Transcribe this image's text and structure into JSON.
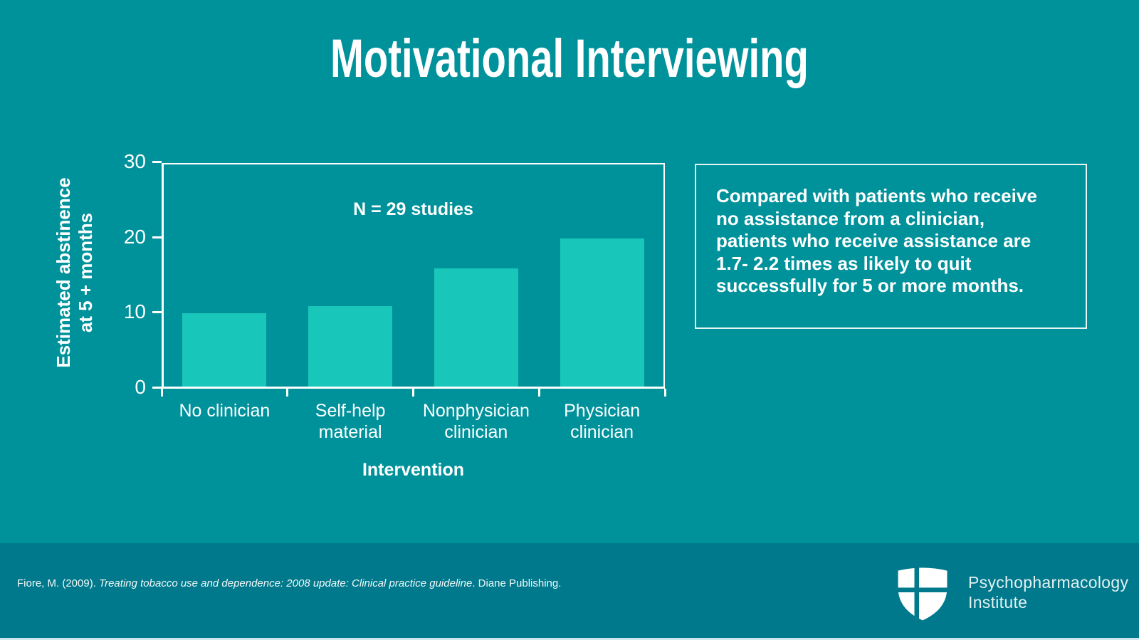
{
  "slide": {
    "title": "Motivational Interviewing"
  },
  "colors": {
    "background": "#00929b",
    "footer_background": "#00798c",
    "bar_fill": "#19c7ba",
    "axis_and_text": "#ffffff",
    "bottom_strip": "#cde7ee"
  },
  "chart_data": {
    "type": "bar",
    "annotation": "N = 29 studies",
    "categories": [
      [
        "No clinician"
      ],
      [
        "Self-help",
        "material"
      ],
      [
        "Nonphysician",
        "clinician"
      ],
      [
        "Physician",
        "clinician"
      ]
    ],
    "values": [
      10,
      11,
      16,
      20
    ],
    "xlabel": "Intervention",
    "ylabel_lines": [
      "Estimated abstinence",
      "at 5 + months"
    ],
    "yticks": [
      0,
      10,
      20,
      30
    ],
    "ylim": [
      0,
      30
    ],
    "grid": false,
    "legend": false,
    "bar_color": "#19c7ba"
  },
  "callout": {
    "lines": [
      "Compared with patients who receive",
      "no assistance from a clinician,",
      "patients who receive  assistance are",
      "1.7- 2.2 times as likely to quit",
      "successfully for 5 or more months."
    ]
  },
  "footer": {
    "citation_prefix": "Fiore, M. (2009). ",
    "citation_italic": "Treating tobacco use and dependence: 2008 update: Clinical practice guideline",
    "citation_suffix": ". Diane Publishing.",
    "logo": {
      "line1": "Psychopharmacology",
      "line2": "Institute",
      "icon": "shield-cross-icon"
    }
  }
}
